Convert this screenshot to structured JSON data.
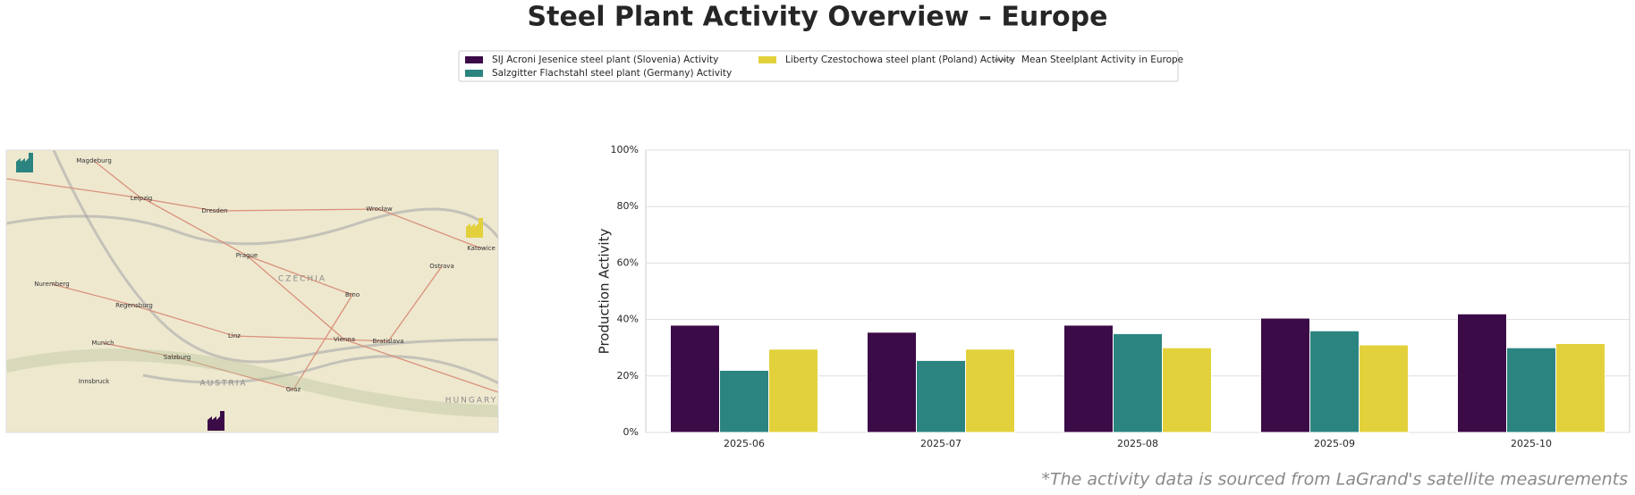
{
  "title": "Steel Plant Activity Overview – Europe",
  "footnote": "*The activity data is sourced from LaGrand's satellite measurements",
  "map": {
    "labels": [
      "Magdeburg",
      "Leipzig",
      "Dresden",
      "Wrocław",
      "Prague",
      "CZECHIA",
      "Nuremberg",
      "Regensburg",
      "Munich",
      "Linz",
      "Vienna",
      "Bratislava",
      "Brno",
      "Ostrava",
      "Katowice",
      "Salzburg",
      "Innsbruck",
      "Graz",
      "AUSTRIA",
      "HUNGARY"
    ]
  },
  "chart_data": {
    "type": "bar",
    "ylabel": "Production Activity",
    "categories": [
      "2025-06",
      "2025-07",
      "2025-08",
      "2025-09",
      "2025-10"
    ],
    "series": [
      {
        "name": "SIJ Acroni Jesenice steel plant (Slovenia) Activity",
        "color": "#3b0b47",
        "values": [
          38,
          35.5,
          38,
          40.5,
          42
        ]
      },
      {
        "name": "Salzgitter Flachstahl steel plant (Germany) Activity",
        "color": "#2c8480",
        "values": [
          22,
          25.5,
          35,
          36,
          30
        ]
      },
      {
        "name": "Liberty Czestochowa steel plant (Poland) Activity",
        "color": "#e3d13c",
        "values": [
          29.5,
          29.5,
          30,
          31,
          31.5
        ]
      },
      {
        "name": "Mean Steelplant Activity in Europe",
        "color": "#808080",
        "dash": true,
        "values": [
          null,
          null,
          null,
          null,
          null
        ]
      }
    ],
    "ylim": [
      0,
      100
    ],
    "yticks": [
      {
        "value": 0,
        "label": "0%"
      },
      {
        "value": 20,
        "label": "20%"
      },
      {
        "value": 40,
        "label": "40%"
      },
      {
        "value": 60,
        "label": "60%"
      },
      {
        "value": 80,
        "label": "80%"
      },
      {
        "value": 100,
        "label": "100%"
      }
    ],
    "grid": true
  }
}
